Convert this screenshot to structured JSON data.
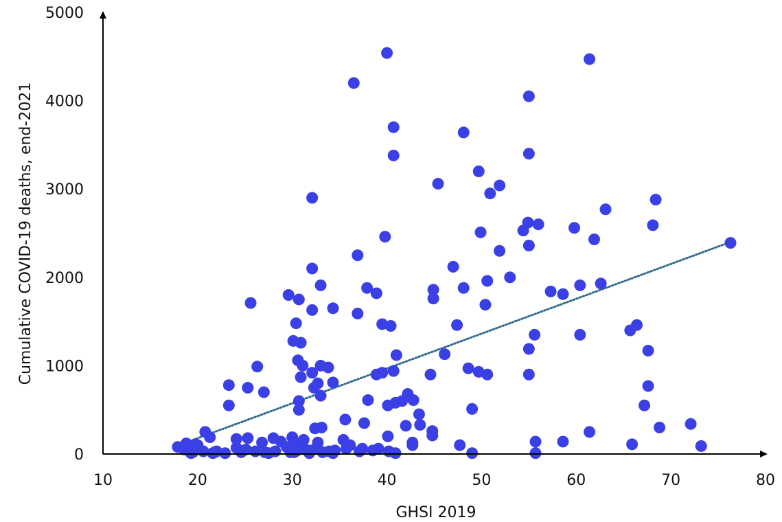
{
  "chart_data": {
    "type": "scatter",
    "xlabel": "GHSI 2019",
    "ylabel": "Cumulative COVID-19 deaths, end-2021",
    "xlim": [
      10,
      80
    ],
    "ylim": [
      0,
      5000
    ],
    "x_ticks": [
      10,
      20,
      30,
      40,
      50,
      60,
      70,
      80
    ],
    "y_ticks": [
      0,
      1000,
      2000,
      3000,
      4000,
      5000
    ],
    "x_tick_labels": [
      "10",
      "20",
      "30",
      "40",
      "50",
      "60",
      "70",
      "80"
    ],
    "y_tick_labels": [
      "0",
      "1000",
      "2000",
      "3000",
      "4000",
      "5000"
    ],
    "grid": false,
    "marker_color": "#3a40e6",
    "trendline": {
      "style": "dotted",
      "color": "#2f6b8f",
      "x": [
        18.5,
        76.3
      ],
      "y": [
        120,
        2400
      ]
    },
    "points": [
      [
        40.0,
        4540
      ],
      [
        61.4,
        4470
      ],
      [
        36.5,
        4200
      ],
      [
        55.0,
        4050
      ],
      [
        40.7,
        3700
      ],
      [
        48.1,
        3640
      ],
      [
        40.7,
        3380
      ],
      [
        55.0,
        3400
      ],
      [
        45.4,
        3060
      ],
      [
        51.9,
        3040
      ],
      [
        49.7,
        3200
      ],
      [
        50.9,
        2950
      ],
      [
        32.1,
        2900
      ],
      [
        68.4,
        2880
      ],
      [
        63.1,
        2770
      ],
      [
        54.9,
        2620
      ],
      [
        56.0,
        2600
      ],
      [
        54.4,
        2530
      ],
      [
        59.8,
        2560
      ],
      [
        68.1,
        2590
      ],
      [
        39.8,
        2460
      ],
      [
        49.9,
        2510
      ],
      [
        61.9,
        2430
      ],
      [
        55.0,
        2360
      ],
      [
        76.3,
        2390
      ],
      [
        51.9,
        2300
      ],
      [
        36.9,
        2250
      ],
      [
        47.0,
        2120
      ],
      [
        32.1,
        2100
      ],
      [
        53.0,
        2000
      ],
      [
        50.6,
        1960
      ],
      [
        62.6,
        1930
      ],
      [
        60.4,
        1910
      ],
      [
        33.0,
        1910
      ],
      [
        37.9,
        1880
      ],
      [
        44.9,
        1860
      ],
      [
        48.1,
        1880
      ],
      [
        57.3,
        1840
      ],
      [
        58.6,
        1810
      ],
      [
        38.9,
        1820
      ],
      [
        29.6,
        1800
      ],
      [
        25.6,
        1710
      ],
      [
        30.7,
        1750
      ],
      [
        44.9,
        1760
      ],
      [
        50.4,
        1690
      ],
      [
        32.1,
        1630
      ],
      [
        34.3,
        1650
      ],
      [
        36.9,
        1590
      ],
      [
        39.5,
        1470
      ],
      [
        40.4,
        1450
      ],
      [
        47.4,
        1460
      ],
      [
        30.4,
        1480
      ],
      [
        66.4,
        1460
      ],
      [
        65.7,
        1400
      ],
      [
        55.6,
        1350
      ],
      [
        60.4,
        1350
      ],
      [
        30.1,
        1280
      ],
      [
        30.9,
        1260
      ],
      [
        55.0,
        1190
      ],
      [
        67.6,
        1170
      ],
      [
        46.1,
        1130
      ],
      [
        41.0,
        1120
      ],
      [
        30.6,
        1060
      ],
      [
        26.3,
        990
      ],
      [
        31.1,
        1000
      ],
      [
        33.0,
        1000
      ],
      [
        33.8,
        980
      ],
      [
        48.6,
        970
      ],
      [
        49.7,
        930
      ],
      [
        50.6,
        900
      ],
      [
        44.6,
        900
      ],
      [
        55.0,
        900
      ],
      [
        32.1,
        920
      ],
      [
        39.5,
        920
      ],
      [
        38.9,
        900
      ],
      [
        40.7,
        940
      ],
      [
        30.9,
        870
      ],
      [
        32.7,
        800
      ],
      [
        34.3,
        810
      ],
      [
        23.3,
        780
      ],
      [
        25.3,
        750
      ],
      [
        27.0,
        700
      ],
      [
        32.3,
        750
      ],
      [
        33.0,
        660
      ],
      [
        67.6,
        770
      ],
      [
        42.2,
        680
      ],
      [
        38.0,
        610
      ],
      [
        42.8,
        610
      ],
      [
        41.6,
        600
      ],
      [
        40.9,
        580
      ],
      [
        40.1,
        550
      ],
      [
        30.7,
        600
      ],
      [
        30.7,
        500
      ],
      [
        23.3,
        550
      ],
      [
        67.2,
        550
      ],
      [
        49.0,
        510
      ],
      [
        43.4,
        450
      ],
      [
        35.6,
        390
      ],
      [
        72.1,
        340
      ],
      [
        43.5,
        330
      ],
      [
        37.6,
        350
      ],
      [
        42.0,
        320
      ],
      [
        68.8,
        300
      ],
      [
        33.1,
        300
      ],
      [
        32.4,
        290
      ],
      [
        20.8,
        250
      ],
      [
        44.8,
        260
      ],
      [
        61.4,
        250
      ],
      [
        44.8,
        210
      ],
      [
        21.3,
        190
      ],
      [
        25.3,
        180
      ],
      [
        28.0,
        180
      ],
      [
        24.1,
        170
      ],
      [
        30.0,
        190
      ],
      [
        31.2,
        160
      ],
      [
        35.4,
        160
      ],
      [
        40.1,
        200
      ],
      [
        58.6,
        140
      ],
      [
        55.7,
        140
      ],
      [
        42.7,
        130
      ],
      [
        32.7,
        130
      ],
      [
        26.8,
        130
      ],
      [
        18.8,
        120
      ],
      [
        19.8,
        110
      ],
      [
        17.9,
        80
      ],
      [
        47.7,
        100
      ],
      [
        65.9,
        110
      ],
      [
        73.2,
        90
      ],
      [
        36.1,
        100
      ],
      [
        42.7,
        100
      ],
      [
        18.6,
        50
      ],
      [
        19.5,
        20
      ],
      [
        20.0,
        100
      ],
      [
        20.6,
        30
      ],
      [
        21.8,
        20
      ],
      [
        22.9,
        10
      ],
      [
        24.1,
        70
      ],
      [
        25.1,
        50
      ],
      [
        26.1,
        30
      ],
      [
        27.1,
        20
      ],
      [
        28.2,
        30
      ],
      [
        29.4,
        80
      ],
      [
        30.2,
        20
      ],
      [
        30.8,
        80
      ],
      [
        31.4,
        50
      ],
      [
        32.0,
        40
      ],
      [
        32.6,
        70
      ],
      [
        33.2,
        20
      ],
      [
        33.9,
        30
      ],
      [
        34.5,
        40
      ],
      [
        37.1,
        30
      ],
      [
        38.5,
        40
      ],
      [
        39.1,
        60
      ],
      [
        40.2,
        30
      ],
      [
        40.9,
        10
      ],
      [
        30.5,
        40
      ],
      [
        29.8,
        20
      ],
      [
        24.6,
        20
      ],
      [
        22.0,
        30
      ],
      [
        19.3,
        10
      ],
      [
        49.0,
        10
      ],
      [
        55.7,
        10
      ],
      [
        34.3,
        10
      ],
      [
        31.8,
        10
      ],
      [
        27.5,
        10
      ],
      [
        37.4,
        60
      ],
      [
        35.7,
        60
      ],
      [
        30.2,
        120
      ],
      [
        28.8,
        140
      ],
      [
        21.6,
        10
      ]
    ]
  }
}
